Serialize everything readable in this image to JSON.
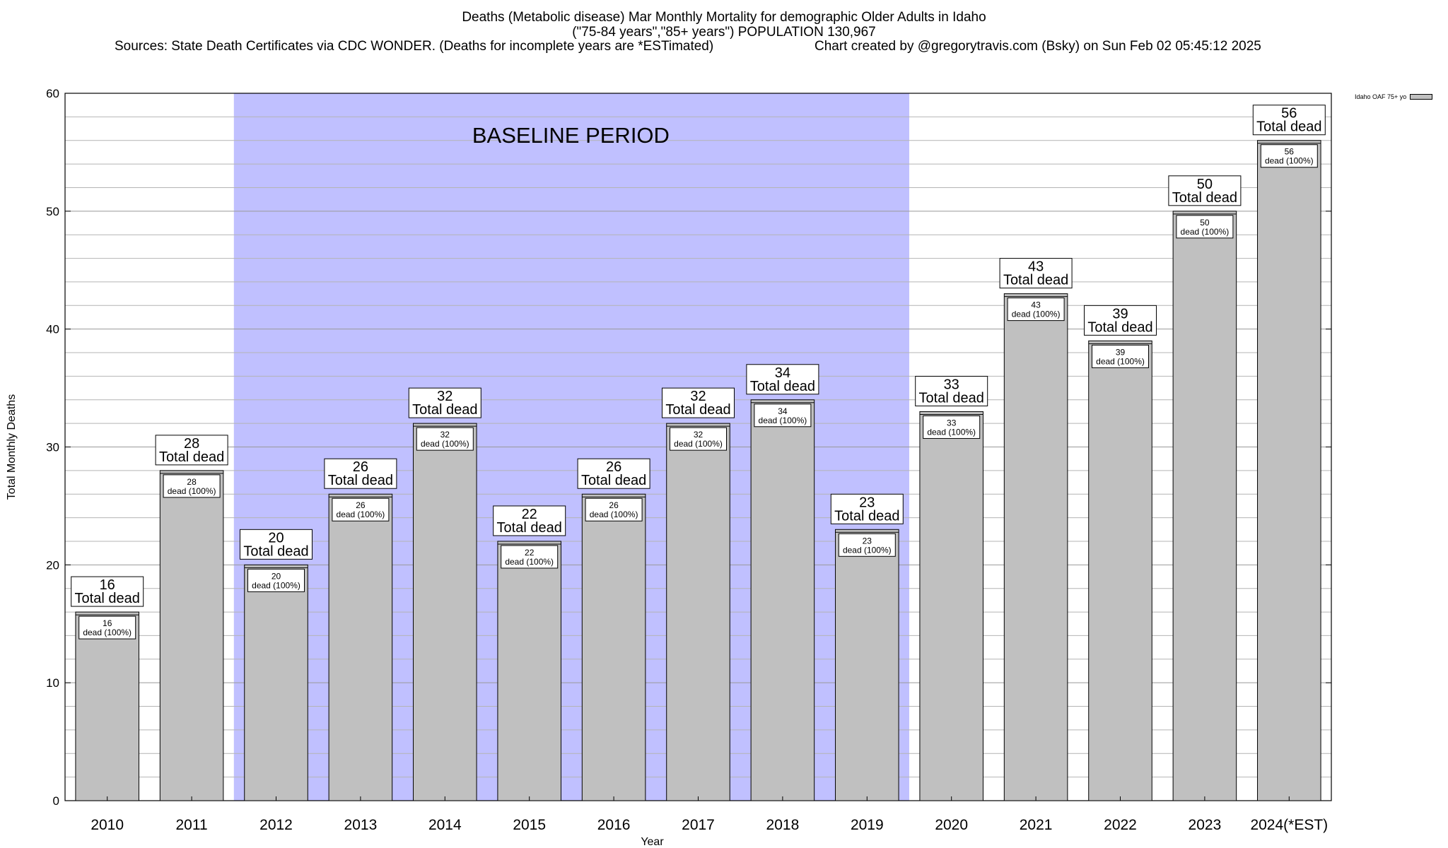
{
  "chart_data": {
    "type": "bar",
    "title_lines": [
      "Deaths (Metabolic disease) Mar Monthly Mortality for demographic Older Adults in Idaho",
      "(\"75-84 years\",\"85+ years\") POPULATION 130,967"
    ],
    "sources": "Sources: State Death Certificates via CDC WONDER. (Deaths for incomplete years are *ESTimated)",
    "credit": "Chart created by @gregorytravis.com (Bsky) on Sun Feb 02 05:45:12 2025",
    "xlabel": "Year",
    "ylabel": "Total Monthly Deaths",
    "ylim": [
      0,
      60
    ],
    "y_ticks": [
      0,
      10,
      20,
      30,
      40,
      50,
      60
    ],
    "grid": true,
    "legend_position": "top-right",
    "categories": [
      "2010",
      "2011",
      "2012",
      "2013",
      "2014",
      "2015",
      "2016",
      "2017",
      "2018",
      "2019",
      "2020",
      "2021",
      "2022",
      "2023",
      "2024(*EST)"
    ],
    "series": [
      {
        "name": "Idaho OAF 75+ yo",
        "values": [
          16,
          28,
          20,
          26,
          32,
          22,
          26,
          32,
          34,
          23,
          33,
          43,
          39,
          50,
          56
        ]
      }
    ],
    "top_label_suffix": "Total dead",
    "inner_label_suffix": "dead (100%)",
    "baseline": {
      "label": "BASELINE PERIOD",
      "start": "2012",
      "end": "2019"
    },
    "colors": {
      "bar": "#c0c0c0",
      "baseline_band": "#c0c0ff",
      "grid": "#b4b4b4"
    }
  }
}
